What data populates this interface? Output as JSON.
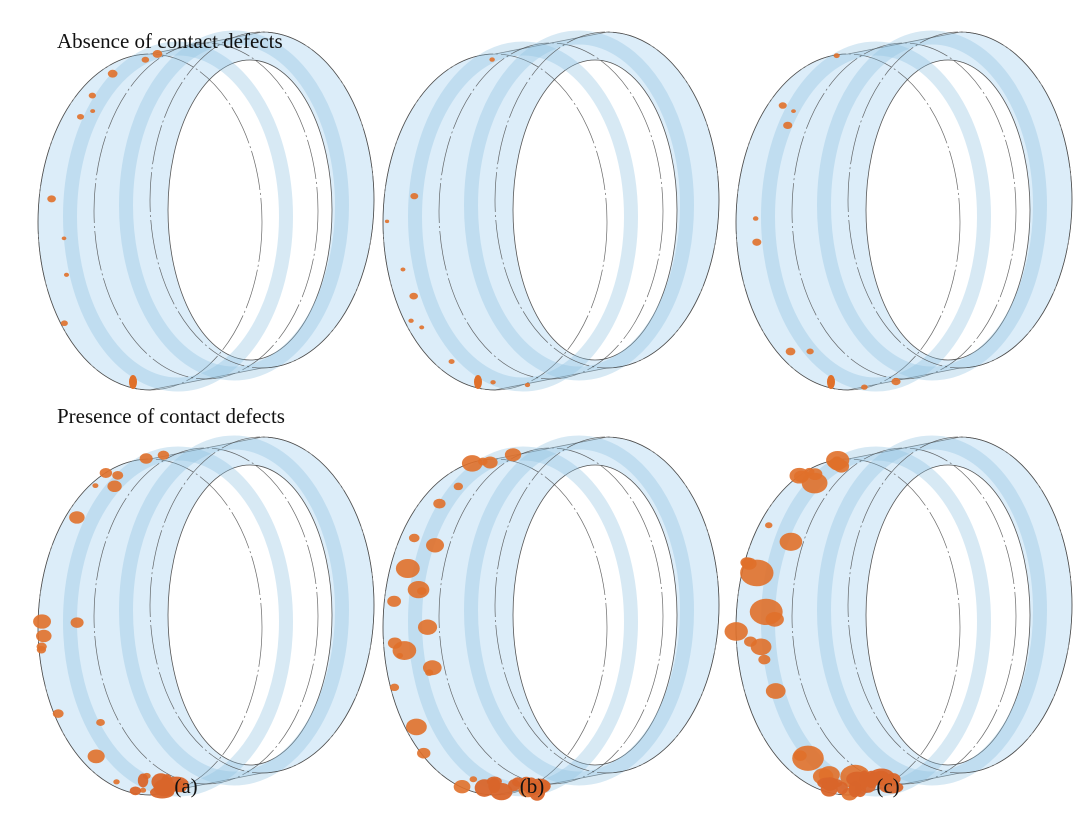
{
  "rows": [
    "Absence of contact defects",
    "Presence of contact defects"
  ],
  "panels": [
    "(a)",
    "(b)",
    "(c)"
  ]
}
